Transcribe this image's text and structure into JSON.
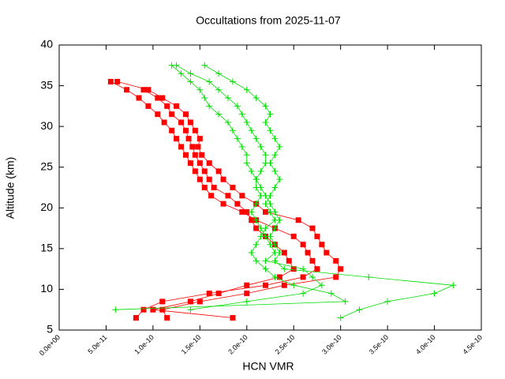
{
  "chart_data": {
    "type": "profile",
    "title": "Occultations from 2025-11-07",
    "xlabel": "HCN VMR",
    "ylabel": "Altitude (km)",
    "xlim": [
      0,
      4.5e-10
    ],
    "ylim": [
      5,
      40
    ],
    "xticks": [
      {
        "value": 0,
        "label": "0.0e+00"
      },
      {
        "value": 5e-11,
        "label": "5.0e-11"
      },
      {
        "value": 1e-10,
        "label": "1.0e-10"
      },
      {
        "value": 1.5e-10,
        "label": "1.5e-10"
      },
      {
        "value": 2e-10,
        "label": "2.0e-10"
      },
      {
        "value": 2.5e-10,
        "label": "2.5e-10"
      },
      {
        "value": 3e-10,
        "label": "3.0e-10"
      },
      {
        "value": 3.5e-10,
        "label": "3.5e-10"
      },
      {
        "value": 4e-10,
        "label": "4.0e-10"
      },
      {
        "value": 4.5e-10,
        "label": "4.5e-10"
      }
    ],
    "yticks": [
      5,
      10,
      15,
      20,
      25,
      30,
      35,
      40
    ],
    "series": [
      {
        "color": "#ff0000",
        "marker": "square",
        "x": [
          5.5e-11,
          7.2e-11,
          8.5e-11,
          9.5e-11,
          1.05e-10,
          1.12e-10,
          1.2e-10,
          1.25e-10,
          1.3e-10,
          1.35e-10,
          1.4e-10,
          1.45e-10,
          1.5e-10,
          1.55e-10,
          1.62e-10,
          1.75e-10,
          1.95e-10,
          2.1e-10,
          2.3e-10,
          2.5e-10,
          2.6e-10,
          2.65e-10,
          2.7e-10,
          2.75e-10,
          2.6e-10,
          2.2e-10,
          1.6e-10,
          1.1e-10,
          9e-11,
          8.2e-11
        ],
        "y": [
          35.5,
          34.5,
          33.5,
          32.5,
          31.5,
          30.5,
          29.5,
          28.5,
          27.5,
          26.5,
          25.5,
          24.5,
          23.5,
          22.5,
          21.5,
          20.5,
          19.5,
          18.5,
          17.5,
          16.5,
          15.5,
          14.5,
          13.5,
          12.5,
          11.5,
          10.5,
          9.5,
          8.5,
          7.5,
          6.5
        ]
      },
      {
        "color": "#ff0000",
        "marker": "square",
        "x": [
          6.2e-11,
          9.5e-11,
          1.1e-10,
          1.25e-10,
          1.35e-10,
          1.4e-10,
          1.45e-10,
          1.5e-10,
          1.48e-10,
          1.52e-10,
          1.6e-10,
          1.7e-10,
          1.75e-10,
          1.85e-10,
          1.95e-10,
          2.1e-10,
          2.2e-10,
          2.55e-10,
          2.7e-10,
          2.75e-10,
          2.8e-10,
          2.85e-10,
          2.95e-10,
          3e-10,
          2.95e-10,
          2.4e-10,
          2e-10,
          1.5e-10,
          1.1e-10,
          1.15e-10
        ],
        "y": [
          35.5,
          34.5,
          33.5,
          32.5,
          31.5,
          30.5,
          29.5,
          28.5,
          27.5,
          26.5,
          25.5,
          24.5,
          23.5,
          22.5,
          21.5,
          20.5,
          19.5,
          18.5,
          17.5,
          16.5,
          15.5,
          14.5,
          13.5,
          12.5,
          11.5,
          10.5,
          9.5,
          8.5,
          7.5,
          6.5
        ]
      },
      {
        "color": "#ff0000",
        "marker": "square",
        "x": [
          9e-11,
          1.05e-10,
          1.15e-10,
          1.2e-10,
          1.3e-10,
          1.35e-10,
          1.38e-10,
          1.42e-10,
          1.45e-10,
          1.5e-10,
          1.55e-10,
          1.6e-10,
          1.65e-10,
          1.8e-10,
          1.9e-10,
          2e-10,
          2.05e-10,
          2.1e-10,
          2.2e-10,
          2.3e-10,
          2.4e-10,
          2.45e-10,
          2.5e-10,
          2.35e-10,
          2e-10,
          1.7e-10,
          1.4e-10,
          1e-10,
          1.85e-10
        ],
        "y": [
          34.5,
          33.5,
          32.5,
          31.5,
          30.5,
          29.5,
          28.5,
          27.5,
          26.5,
          25.5,
          24.5,
          23.5,
          22.5,
          21.5,
          20.5,
          19.5,
          18.5,
          17.5,
          16.5,
          15.5,
          14.5,
          13.5,
          12.5,
          11.5,
          10.5,
          9.5,
          8.5,
          7.5,
          6.5
        ]
      },
      {
        "color": "#00dd00",
        "marker": "plus",
        "x": [
          1.25e-10,
          1.4e-10,
          1.6e-10,
          1.7e-10,
          1.8e-10,
          1.9e-10,
          1.95e-10,
          2e-10,
          2.05e-10,
          2.1e-10,
          2.15e-10,
          2.2e-10,
          2.2e-10,
          2.15e-10,
          2.1e-10,
          2.15e-10,
          2.2e-10,
          2.25e-10,
          2.3e-10,
          2.35e-10,
          2.3e-10,
          2.25e-10,
          2.3e-10,
          2.35e-10,
          2.3e-10,
          2.4e-10,
          3.3e-10,
          4.2e-10,
          4e-10,
          3.5e-10,
          3.2e-10,
          3e-10
        ],
        "y": [
          37.5,
          36.5,
          35.5,
          34.5,
          33.5,
          32.5,
          31.5,
          30.5,
          29.5,
          28.5,
          27.5,
          26.5,
          25.5,
          24.5,
          23.5,
          22.5,
          21.5,
          20.5,
          19.5,
          18.5,
          17.5,
          16.5,
          15.5,
          14.5,
          13.5,
          12.5,
          11.5,
          10.5,
          9.5,
          8.5,
          7.5,
          6.5
        ]
      },
      {
        "color": "#00dd00",
        "marker": "plus",
        "x": [
          1.55e-10,
          1.7e-10,
          1.85e-10,
          2e-10,
          2.1e-10,
          2.2e-10,
          2.25e-10,
          2.2e-10,
          2.25e-10,
          2.3e-10,
          2.35e-10,
          2.3e-10,
          2.25e-10,
          2.3e-10,
          2.35e-10,
          2.3e-10,
          2.25e-10,
          2.2e-10,
          2.25e-10,
          2.3e-10,
          2.2e-10,
          2.15e-10,
          2.1e-10,
          2.05e-10,
          2.1e-10,
          2.2e-10,
          2.3e-10,
          2.5e-10,
          2.9e-10,
          3.05e-10,
          6e-11
        ],
        "y": [
          37.5,
          36.5,
          35.5,
          34.5,
          33.5,
          32.5,
          31.5,
          30.5,
          29.5,
          28.5,
          27.5,
          26.5,
          25.5,
          24.5,
          23.5,
          22.5,
          21.5,
          20.5,
          19.5,
          18.5,
          17.5,
          16.5,
          15.5,
          14.5,
          13.5,
          12.5,
          11.5,
          10.5,
          9.5,
          8.5,
          7.5
        ]
      },
      {
        "color": "#00dd00",
        "marker": "plus",
        "x": [
          1.2e-10,
          1.3e-10,
          1.4e-10,
          1.5e-10,
          1.55e-10,
          1.6e-10,
          1.7e-10,
          1.8e-10,
          1.85e-10,
          1.9e-10,
          1.95e-10,
          2e-10,
          2e-10,
          2.05e-10,
          2.1e-10,
          2.1e-10,
          2.15e-10,
          2.1e-10,
          2.05e-10,
          2.1e-10,
          2.15e-10,
          2.2e-10,
          2.25e-10,
          2.3e-10,
          2.2e-10,
          2.6e-10,
          2.7e-10,
          2.8e-10,
          2.6e-10,
          2e-10,
          1.4e-10
        ],
        "y": [
          37.5,
          36.5,
          35.5,
          34.5,
          33.5,
          32.5,
          31.5,
          30.5,
          29.5,
          28.5,
          27.5,
          26.5,
          25.5,
          24.5,
          23.5,
          22.5,
          21.5,
          20.5,
          19.5,
          18.5,
          17.5,
          16.5,
          15.5,
          14.5,
          13.5,
          12.5,
          11.5,
          10.5,
          9.5,
          8.5,
          7.5
        ]
      }
    ]
  }
}
